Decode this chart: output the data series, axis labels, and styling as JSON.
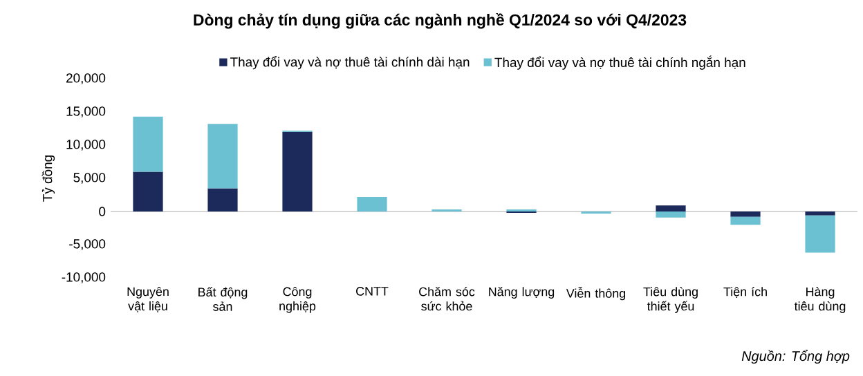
{
  "chart_data": {
    "type": "bar",
    "stacked": true,
    "title": "Dòng chảy tín dụng giữa các ngành nghề Q1/2024 so với Q4/2023",
    "ylabel": "Tỷ đồng",
    "categories": [
      "Nguyên vật liệu",
      "Bất động sản",
      "Công nghiệp",
      "CNTT",
      "Chăm sóc sức khỏe",
      "Năng lượng",
      "Viễn thông",
      "Tiêu dùng thiết yếu",
      "Tiện ích",
      "Hàng tiêu dùng"
    ],
    "series": [
      {
        "name": "Thay đổi vay và nợ thuê tài chính dài hạn",
        "color": "#1b2a5a",
        "values": [
          6000,
          3500,
          12000,
          null,
          null,
          -200,
          null,
          900,
          -800,
          -600
        ]
      },
      {
        "name": "Thay đổi vay và nợ thuê tài chính ngắn hạn",
        "color": "#6bc1d2",
        "values": [
          8300,
          9700,
          200,
          2200,
          300,
          300,
          -300,
          -900,
          -1200,
          -5600
        ]
      }
    ],
    "ylim": [
      -10000,
      20000
    ],
    "yticks": [
      {
        "value": -10000,
        "label": "-10,000"
      },
      {
        "value": -5000,
        "label": "-5,000"
      },
      {
        "value": 0,
        "label": "0"
      },
      {
        "value": 5000,
        "label": "5,000"
      },
      {
        "value": 10000,
        "label": "10,000"
      },
      {
        "value": 15000,
        "label": "15,000"
      },
      {
        "value": 20000,
        "label": "20,000"
      }
    ],
    "legend": "top",
    "annotations": [
      "Nguồn:  Tổng hợp"
    ]
  }
}
